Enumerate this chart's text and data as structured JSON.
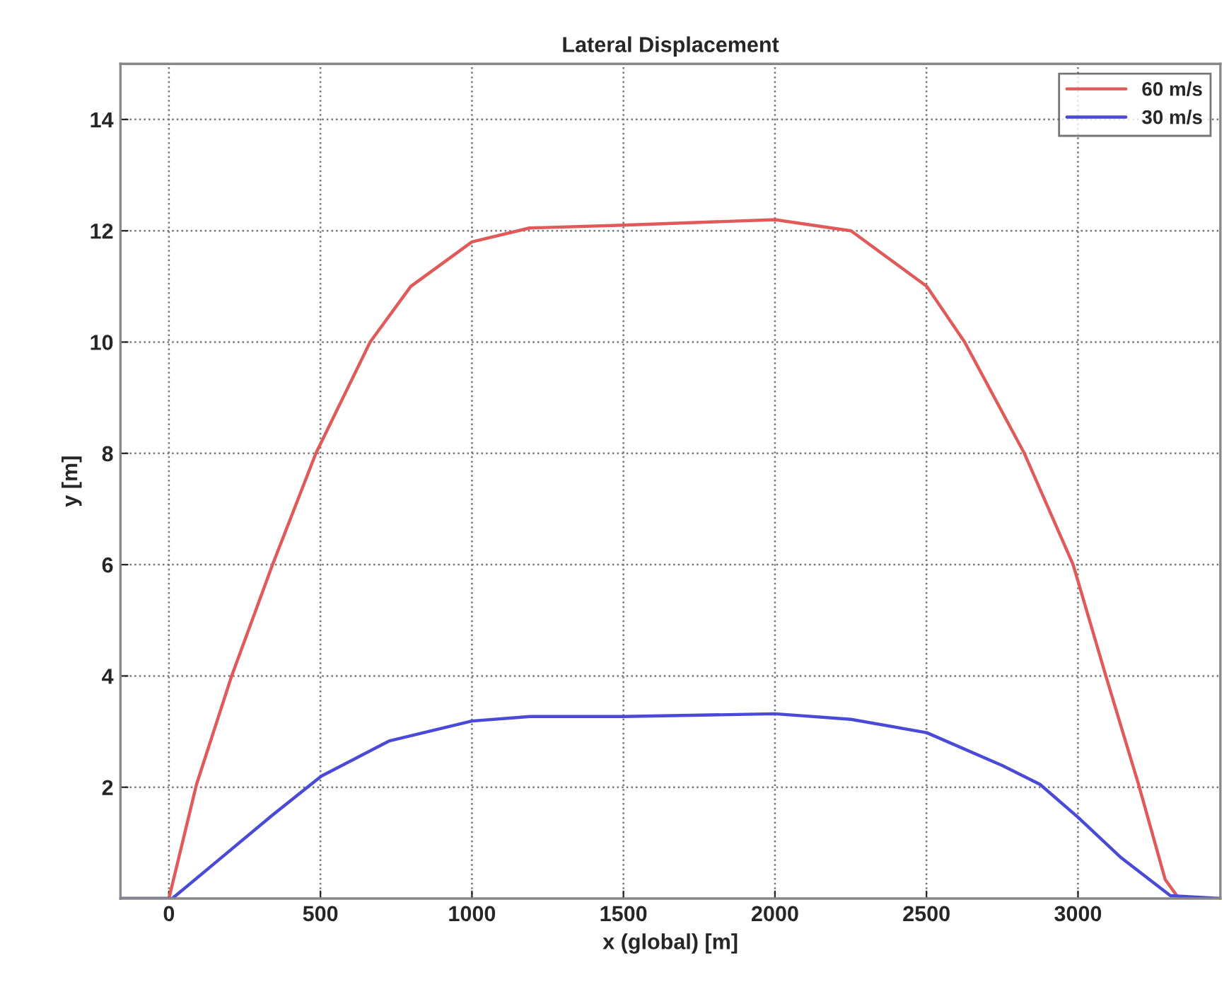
{
  "chart_data": {
    "type": "line",
    "title": "Lateral Displacement",
    "xlabel": "x (global) [m]",
    "ylabel": "y [m]",
    "xlim": [
      -160,
      3470
    ],
    "ylim": [
      0,
      15
    ],
    "xticks": [
      0,
      500,
      1000,
      1500,
      2000,
      2500,
      3000
    ],
    "yticks": [
      2,
      4,
      6,
      8,
      10,
      12,
      14
    ],
    "grid": true,
    "legend": "top right",
    "line_style": "solid",
    "marker": "none",
    "series": [
      {
        "name": "60 m/s",
        "color": "#e05a5a",
        "x": [
          -160,
          0,
          91,
          207,
          342,
          485,
          664,
          798,
          1000,
          1190,
          1500,
          2000,
          2251,
          2501,
          2626,
          2823,
          2984,
          3092,
          3200,
          3288,
          3333,
          3470
        ],
        "values": [
          0,
          0,
          2.05,
          4,
          6,
          8,
          10,
          11,
          11.8,
          12.05,
          12.1,
          12.2,
          12,
          11,
          10,
          8,
          6,
          4,
          2.05,
          0.34,
          0,
          0
        ]
      },
      {
        "name": "30 m/s",
        "color": "#4a4ad8",
        "x": [
          -160,
          11,
          172,
          342,
          503,
          726,
          1000,
          1191,
          1501,
          2000,
          2251,
          2501,
          2750,
          2875,
          3000,
          3143,
          3305,
          3470
        ],
        "values": [
          0,
          0,
          0.73,
          1.5,
          2.2,
          2.83,
          3.19,
          3.27,
          3.27,
          3.32,
          3.22,
          2.98,
          2.39,
          2.05,
          1.46,
          0.73,
          0.05,
          0
        ]
      }
    ]
  }
}
